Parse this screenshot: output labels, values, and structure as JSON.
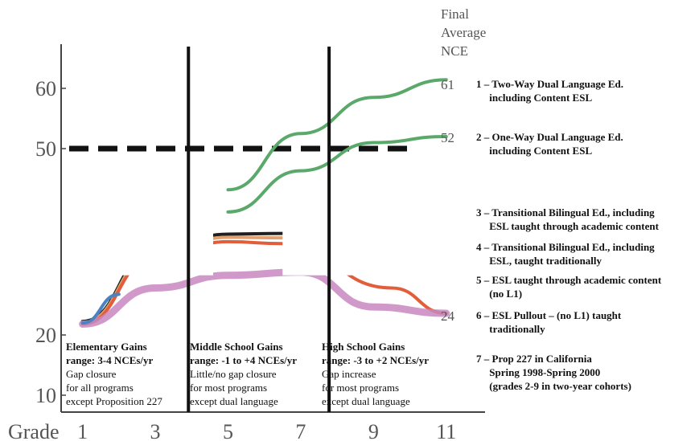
{
  "chart_data": {
    "type": "line",
    "title": "",
    "xlabel": "Grade",
    "ylabel": "",
    "x_ticks": [
      1,
      3,
      5,
      7,
      9,
      11
    ],
    "y_ticks": [
      10,
      20,
      50,
      60
    ],
    "xlim": [
      0.5,
      12
    ],
    "reference_line": {
      "y": 50
    },
    "legend_header": "Final\nAverage\nNCE",
    "series": [
      {
        "id": "1",
        "final_label": "61",
        "label": "1 – Two-Way Dual Language Ed.\n     including Content ESL",
        "color": "#5aa86a",
        "points": [
          [
            5.0,
            43.5
          ],
          [
            7.0,
            52.5
          ],
          [
            9.0,
            58.5
          ],
          [
            11.0,
            61.5
          ]
        ]
      },
      {
        "id": "2",
        "final_label": "52",
        "label": "2 – One-Way Dual Language Ed.\n     including Content ESL",
        "color": "#5aa86a",
        "points": [
          [
            5.0,
            40.0
          ],
          [
            7.0,
            46.5
          ],
          [
            9.0,
            51.0
          ],
          [
            11.0,
            52.0
          ]
        ]
      },
      {
        "id": "3",
        "final_label": "",
        "label": "3 – Transitional Bilingual Ed., including\n     ESL taught through academic content",
        "color": "#1f1f1f",
        "points": [
          [
            1.0,
            22.5
          ],
          [
            3.0,
            34.0
          ],
          [
            5.0,
            36.5
          ],
          [
            6.5,
            36.6
          ]
        ]
      },
      {
        "id": "4",
        "final_label": "",
        "label": "4 – Transitional Bilingual Ed., including\n     ESL, taught traditionally",
        "color": "#e0a070",
        "points": [
          [
            1.0,
            22.3
          ],
          [
            3.0,
            33.5
          ],
          [
            5.0,
            36.0
          ],
          [
            6.5,
            35.9
          ]
        ]
      },
      {
        "id": "5",
        "final_label": "",
        "label": "5 – ESL taught through academic content\n     (no L1)",
        "color": "#e35d3a",
        "points": [
          [
            1.0,
            22.0
          ],
          [
            3.0,
            33.0
          ],
          [
            5.0,
            35.3
          ],
          [
            6.5,
            35.0
          ],
          [
            9.5,
            28.0
          ],
          [
            11.0,
            24.0
          ]
        ]
      },
      {
        "id": "6",
        "final_label": "24",
        "label": "6 – ESL Pullout – (no L1) taught\n     traditionally",
        "color": "#c887bf",
        "points": [
          [
            1.0,
            22.0
          ],
          [
            3.0,
            28.0
          ],
          [
            5.0,
            30.0
          ],
          [
            7.0,
            30.5
          ],
          [
            9.0,
            25.0
          ],
          [
            11.0,
            24.0
          ]
        ]
      },
      {
        "id": "7",
        "final_label": "",
        "label": "7 – Prop 227 in California\n     Spring 1998-Spring 2000\n     (grades 2-9 in two-year cohorts)",
        "color": "#4a82c4",
        "points": [
          [
            1.0,
            22.2
          ],
          [
            2.0,
            27.0
          ]
        ]
      }
    ],
    "stage_dividers": [
      4.0,
      8.0
    ],
    "panels": [
      {
        "title": "Elementary Gains",
        "subtitle": "range: 3-4 NCEs/yr",
        "lines": [
          "Gap closure",
          "for all programs",
          "except Proposition 227"
        ]
      },
      {
        "title": "Middle School Gains",
        "subtitle": "range: -1 to +4 NCEs/yr",
        "lines": [
          "Little/no gap closure",
          "for most programs",
          "except dual language"
        ]
      },
      {
        "title": "High School Gains",
        "subtitle": "range: -3 to +2 NCEs/yr",
        "lines": [
          "Gap increase",
          "for most programs",
          "except dual language"
        ]
      }
    ]
  }
}
